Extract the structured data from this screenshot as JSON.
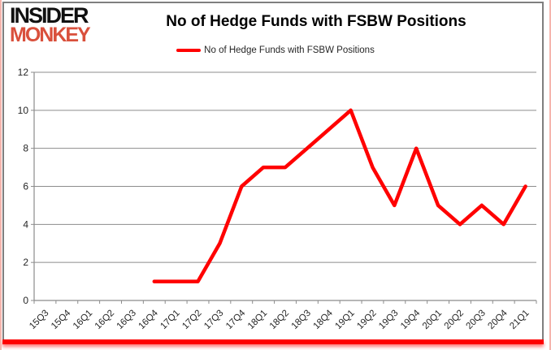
{
  "branding": {
    "logo_line1": "INSIDER",
    "logo_line2": "MONKEY",
    "logo_color1": "#111111",
    "logo_color2": "#d9503c"
  },
  "header": {
    "title": "No of Hedge Funds with FSBW Positions"
  },
  "legend": {
    "label": "No of Hedge Funds with FSBW Positions",
    "line_color": "#ff0000"
  },
  "chart_data": {
    "type": "line",
    "title": "No of Hedge Funds with FSBW Positions",
    "categories": [
      "15Q3",
      "15Q4",
      "16Q1",
      "16Q2",
      "16Q3",
      "16Q4",
      "17Q1",
      "17Q2",
      "17Q3",
      "17Q4",
      "18Q1",
      "18Q2",
      "18Q3",
      "18Q4",
      "19Q1",
      "19Q2",
      "19Q3",
      "19Q4",
      "20Q1",
      "20Q2",
      "20Q3",
      "20Q4",
      "21Q1"
    ],
    "series": [
      {
        "name": "No of Hedge Funds with FSBW Positions",
        "color": "#ff0000",
        "values": [
          null,
          null,
          null,
          null,
          null,
          1,
          1,
          1,
          3,
          6,
          7,
          7,
          8,
          9,
          10,
          7,
          5,
          8,
          5,
          4,
          5,
          4,
          6
        ]
      }
    ],
    "xlabel": "",
    "ylabel": "",
    "ylim": [
      0,
      12
    ],
    "yticks": [
      0,
      2,
      4,
      6,
      8,
      10,
      12
    ],
    "grid": true,
    "legend_position": "top",
    "gridline_color": "#8c8c8c",
    "axis_color": "#8c8c8c",
    "text_color": "#262626",
    "line_width": 4.5
  }
}
